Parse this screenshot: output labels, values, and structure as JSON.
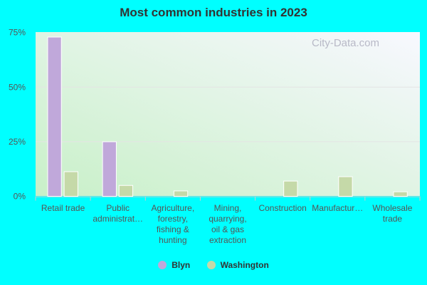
{
  "chart_data": {
    "type": "bar",
    "title": "Most common industries in 2023",
    "categories": [
      [
        "Retail trade"
      ],
      [
        "Public",
        "administrat…"
      ],
      [
        "Agriculture,",
        "forestry,",
        "fishing &",
        "hunting"
      ],
      [
        "Mining,",
        "quarrying,",
        "oil & gas",
        "extraction"
      ],
      [
        "Construction"
      ],
      [
        "Manufactur…"
      ],
      [
        "Wholesale",
        "trade"
      ]
    ],
    "series": [
      {
        "name": "Blyn",
        "color": "#c0a8da",
        "values": [
          72.9,
          25.0,
          0,
          0,
          0,
          0,
          0
        ]
      },
      {
        "name": "Washington",
        "color": "#c5d9a8",
        "values": [
          11.3,
          5.0,
          2.5,
          0,
          7.0,
          9.0,
          2.1
        ]
      }
    ],
    "yticks": [
      "0%",
      "25%",
      "50%",
      "75%"
    ],
    "ylim": [
      0,
      75
    ],
    "grid": true,
    "legend_position": "bottom"
  },
  "watermark": "City-Data.com"
}
